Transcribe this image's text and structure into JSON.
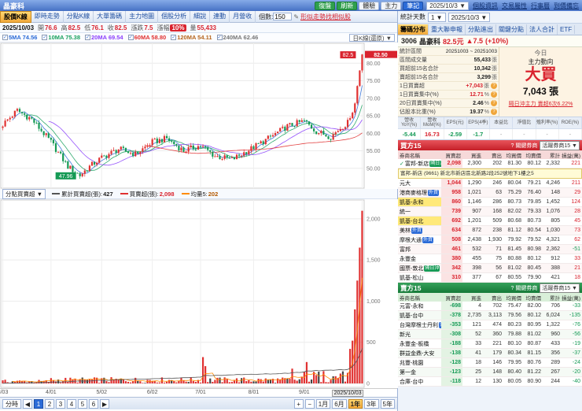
{
  "window": {
    "title": "晶豪科"
  },
  "topbar": {
    "buttons": [
      {
        "id": "replay",
        "label": "復盤"
      },
      {
        "id": "refresh",
        "label": "刷新"
      },
      {
        "id": "experience",
        "label": "體驗"
      },
      {
        "id": "main-force",
        "label": "主力"
      },
      {
        "id": "notes",
        "label": "筆記"
      }
    ],
    "date": "2025/10/3",
    "links": [
      {
        "id": "stock-info",
        "label": "個股資訊"
      },
      {
        "id": "trade-attr",
        "label": "交易屬性"
      },
      {
        "id": "calendar",
        "label": "行事曆"
      },
      {
        "id": "price-alert",
        "label": "到價備忘"
      }
    ]
  },
  "left": {
    "tabs": [
      {
        "id": "price-kline",
        "label": "股價K線",
        "active": true
      },
      {
        "id": "realtime",
        "label": "即時走勢",
        "active": false
      },
      {
        "id": "branch-kline",
        "label": "分點K線",
        "active": false
      },
      {
        "id": "big-order",
        "label": "大單籌碼",
        "active": false
      },
      {
        "id": "force-map",
        "label": "主力地圖",
        "active": false
      },
      {
        "id": "stock-analysis",
        "label": "個股分析",
        "active": false
      },
      {
        "id": "detail",
        "label": "細說",
        "active": false
      },
      {
        "id": "linkage",
        "label": "連動",
        "active": false
      },
      {
        "id": "monthly-revenue",
        "label": "月營收",
        "active": false
      }
    ],
    "count_label": "個數:",
    "count_value": "150",
    "similar_link": "形似走勢找相似股",
    "ohlc": {
      "date": "2025/10/03",
      "open_label": "開",
      "open": "76.6",
      "high_label": "高",
      "high": "82.5",
      "low_label": "低",
      "low": "76.1",
      "close_label": "收",
      "close": "82.5",
      "chg_label": "漲跌",
      "chg": "7.5",
      "pct_label": "漲幅",
      "pct": "10%",
      "vol_label": "量",
      "vol": "55,433"
    },
    "ma": [
      {
        "label": "5MA",
        "value": "74.56",
        "color": "#2b6bd7"
      },
      {
        "label": "10MA",
        "value": "75.38",
        "color": "#19a15f"
      },
      {
        "label": "20MA",
        "value": "69.54",
        "color": "#8a3ffc"
      },
      {
        "label": "60MA",
        "value": "58.80",
        "color": "#e03131"
      },
      {
        "label": "120MA",
        "value": "54.11",
        "color": "#b5651d"
      },
      {
        "label": "240MA",
        "value": "62.46",
        "color": "#777777"
      }
    ],
    "kline_select": "日K線(還原) ▼",
    "sub_select": "分點買賣超 ▼",
    "legend": [
      {
        "swatch": "#555",
        "label": "累計買賣超(張):",
        "value": "427",
        "color": "#222"
      },
      {
        "swatch": "#e03131",
        "label": "買賣超(張):",
        "value": "2,098",
        "color": "#d9232e"
      },
      {
        "swatch": "#ff8c00",
        "label": "均量5:",
        "value": "202",
        "color": "#b35900"
      }
    ],
    "pager": {
      "prefix": "分時",
      "prev": "◀",
      "next": "▶",
      "pages": [
        "1",
        "2",
        "3",
        "4",
        "5",
        "6"
      ],
      "active": "1"
    },
    "zoom_in": "+",
    "zoom_out": "−",
    "periods": [
      "1月",
      "6月",
      "1年",
      "3年",
      "5年"
    ],
    "active_period": "1年"
  },
  "chart_data": {
    "type": "candlestick",
    "title": "晶豪科(3006) 日K線與分點買賣超",
    "n": 150,
    "x_ticks": [
      {
        "i": 0,
        "label": "3/03"
      },
      {
        "i": 20,
        "label": "4/01"
      },
      {
        "i": 41,
        "label": "5/02"
      },
      {
        "i": 62,
        "label": "6/02"
      },
      {
        "i": 82,
        "label": "7/01"
      },
      {
        "i": 104,
        "label": "8/01"
      },
      {
        "i": 125,
        "label": "9/01"
      },
      {
        "i": 149,
        "label": "2025/10/03"
      }
    ],
    "price_ylim": [
      45,
      85
    ],
    "price_ticks": [
      50,
      55,
      60,
      65,
      70,
      75,
      80
    ],
    "price_path": [
      [
        0,
        62.5
      ],
      [
        6,
        66.5
      ],
      [
        12,
        64.0
      ],
      [
        20,
        57.5
      ],
      [
        27,
        50.5
      ],
      [
        32,
        47.96
      ],
      [
        36,
        50.5
      ],
      [
        41,
        53.0
      ],
      [
        48,
        55.5
      ],
      [
        55,
        54.0
      ],
      [
        62,
        57.5
      ],
      [
        68,
        58.5
      ],
      [
        75,
        55.0
      ],
      [
        82,
        56.5
      ],
      [
        88,
        53.5
      ],
      [
        95,
        52.5
      ],
      [
        104,
        56.0
      ],
      [
        110,
        58.5
      ],
      [
        118,
        62.0
      ],
      [
        125,
        63.5
      ],
      [
        130,
        60.5
      ],
      [
        136,
        59.0
      ],
      [
        140,
        61.5
      ],
      [
        143,
        63.0
      ],
      [
        145,
        66.0
      ],
      [
        146,
        68.5
      ],
      [
        147,
        73.5
      ],
      [
        148,
        78.0
      ],
      [
        149,
        82.5
      ]
    ],
    "low_flag": {
      "i": 32,
      "value": "47.96"
    },
    "high_flag": {
      "i": 149,
      "value": "82.5"
    },
    "last_price_axis_flag": "82.50",
    "net_ylim": [
      0,
      2200
    ],
    "net_ticks": [
      0,
      500,
      1000,
      1500,
      2000
    ],
    "net_spikes": {
      "83": 320,
      "84": 210,
      "120": 180,
      "126": 260,
      "133": 150,
      "140": 120,
      "144": 420,
      "145": 520,
      "146": 900,
      "147": 1250,
      "148": 1650,
      "149": 2098
    },
    "ma_windows": [
      5,
      10,
      20,
      60
    ],
    "up_color": "#e03131",
    "down_color": "#159a55"
  },
  "right": {
    "controls": {
      "stat_days_label": "統計天數",
      "stat_days_value": "1 ▼",
      "date_value": "2025/10/3 ▼"
    },
    "tabs": [
      {
        "id": "chip-distribution",
        "label": "籌碼分布",
        "active": true
      },
      {
        "id": "major-holders",
        "label": "重大聯申報",
        "active": false
      },
      {
        "id": "branch-flow",
        "label": "分點進出",
        "active": false
      },
      {
        "id": "key-branch",
        "label": "關鍵分點",
        "active": false
      },
      {
        "id": "institutional",
        "label": "法人合計",
        "active": false
      },
      {
        "id": "etf",
        "label": "ETF",
        "active": false
      }
    ],
    "stock": {
      "code": "3006",
      "name": "晶豪科",
      "price": "82.5元",
      "change": "▲7.5",
      "pct": "(+10%)"
    },
    "stats": {
      "range_label": "統計區間",
      "range": "20251003 ~ 20251003",
      "rows": [
        {
          "label": "區間成交量",
          "value": "55,433",
          "unit": "張",
          "red": false,
          "help": false
        },
        {
          "label": "買超前15名合計",
          "value": "10,342",
          "unit": "張",
          "red": false,
          "help": false
        },
        {
          "label": "賣超前15名合計",
          "value": "3,299",
          "unit": "張",
          "red": false,
          "help": false
        },
        {
          "label": "1日買賣超",
          "value": "+7,043",
          "unit": "張",
          "red": true,
          "help": true
        },
        {
          "label": "1日買賣集中(%)",
          "value": "12.71",
          "unit": "%",
          "red": true,
          "help": true
        },
        {
          "label": "20日買賣集中(%)",
          "value": "2.46",
          "unit": "%",
          "red": false,
          "help": true
        },
        {
          "label": "佔股本比重(%)",
          "value": "19.37",
          "unit": "%",
          "red": false,
          "help": true
        }
      ]
    },
    "force_box": {
      "today": "今日",
      "title": "主力動向",
      "action": "大買",
      "amount": "7,043 張",
      "note": "隔日沖主力 賣超6次6.22%"
    },
    "metrics": {
      "headers": [
        "營收YoY(%)",
        "營收MoM(%)",
        "EPS(元)",
        "EPS(4季)",
        "本益比",
        "淨值比",
        "殖利率(%)",
        "ROE(%)"
      ],
      "values": [
        {
          "v": "-5.44",
          "c": "green"
        },
        {
          "v": "16.73",
          "c": "red"
        },
        {
          "v": "-2.59",
          "c": "green"
        },
        {
          "v": "-1.7",
          "c": "green"
        },
        {
          "v": "-",
          "c": "dim"
        },
        {
          "v": "-",
          "c": "dim"
        },
        {
          "v": "-",
          "c": "dim"
        },
        {
          "v": "-",
          "c": "dim"
        }
      ]
    },
    "buy_table": {
      "title": "買方15",
      "key_label": "? 關鍵券商",
      "filter": "活躍券商15 ▼",
      "columns": [
        "券商名稱",
        "買賣超",
        "買進",
        "賣出",
        "均買價",
        "均賣價",
        "累計",
        "損益(萬)"
      ],
      "tooltip": {
        "name": "富邦-新店",
        "code": "(9661)",
        "address": "新北市新店區北新路2段252號地下1樓之5"
      },
      "tooltip_after_row": 0,
      "rows": [
        {
          "name": "富邦-新店",
          "tag": "隔日沖",
          "tag_color": "green",
          "checked": true,
          "highlight": false,
          "cells": [
            "2,098",
            "2,300",
            "202",
            "81.30",
            "80.12",
            "2,332",
            "221"
          ]
        },
        {
          "name": "元大",
          "tag": "",
          "tag_color": "",
          "checked": false,
          "highlight": false,
          "cells": [
            "1,044",
            "1,290",
            "246",
            "80.04",
            "79.21",
            "4,246",
            "211"
          ]
        },
        {
          "name": "港商麥格理",
          "tag": "外資",
          "tag_color": "blue",
          "checked": false,
          "highlight": false,
          "cells": [
            "958",
            "1,021",
            "63",
            "75.29",
            "76.40",
            "148",
            "29"
          ]
        },
        {
          "name": "凱基-永和",
          "tag": "隔日沖主力",
          "tag_color": "yellow",
          "checked": false,
          "highlight": true,
          "cells": [
            "860",
            "1,146",
            "286",
            "80.73",
            "79.85",
            "1,452",
            "124"
          ]
        },
        {
          "name": "統一",
          "tag": "",
          "tag_color": "",
          "checked": false,
          "highlight": false,
          "cells": [
            "739",
            "907",
            "168",
            "82.02",
            "79.33",
            "1,076",
            "28"
          ]
        },
        {
          "name": "凱基-台北",
          "tag": "隔日沖主力",
          "tag_color": "yellow",
          "checked": false,
          "highlight": true,
          "cells": [
            "692",
            "1,201",
            "509",
            "80.68",
            "80.73",
            "805",
            "45"
          ]
        },
        {
          "name": "美林",
          "tag": "外資",
          "tag_color": "blue",
          "checked": false,
          "highlight": false,
          "cells": [
            "634",
            "872",
            "238",
            "81.12",
            "80.54",
            "1,030",
            "73"
          ]
        },
        {
          "name": "摩根大通",
          "tag": "外資",
          "tag_color": "blue",
          "checked": false,
          "highlight": false,
          "cells": [
            "508",
            "2,438",
            "1,930",
            "79.92",
            "79.52",
            "4,321",
            "62"
          ]
        },
        {
          "name": "富邦",
          "tag": "",
          "tag_color": "",
          "checked": false,
          "highlight": false,
          "cells": [
            "461",
            "532",
            "71",
            "81.45",
            "80.98",
            "2,362",
            "-51"
          ]
        },
        {
          "name": "永豐金",
          "tag": "",
          "tag_color": "",
          "checked": false,
          "highlight": false,
          "cells": [
            "380",
            "455",
            "75",
            "80.88",
            "80.12",
            "912",
            "33"
          ]
        },
        {
          "name": "國票-敦北",
          "tag": "隔日沖",
          "tag_color": "green",
          "checked": false,
          "highlight": false,
          "cells": [
            "342",
            "398",
            "56",
            "81.02",
            "80.45",
            "388",
            "21"
          ]
        },
        {
          "name": "凱基-松山",
          "tag": "",
          "tag_color": "",
          "checked": false,
          "highlight": false,
          "cells": [
            "310",
            "377",
            "67",
            "80.55",
            "79.90",
            "421",
            "18"
          ]
        }
      ]
    },
    "sell_table": {
      "title": "賣方15",
      "key_label": "? 關鍵券商",
      "filter": "活躍券商15 ▼",
      "columns": [
        "券商名稱",
        "買賣超",
        "買進",
        "賣出",
        "均買價",
        "均賣價",
        "累計",
        "損益(萬)"
      ],
      "rows": [
        {
          "name": "元富-永和",
          "tag": "",
          "tag_color": "",
          "checked": false,
          "highlight": false,
          "cells": [
            "-698",
            "4",
            "702",
            "75.47",
            "82.00",
            "706",
            "-33"
          ]
        },
        {
          "name": "凱基-台中",
          "tag": "",
          "tag_color": "",
          "checked": false,
          "highlight": false,
          "cells": [
            "-378",
            "2,735",
            "3,113",
            "79.56",
            "80.12",
            "6,024",
            "-135"
          ]
        },
        {
          "name": "台灣摩根士丹利",
          "tag": "外資",
          "tag_color": "blue",
          "checked": false,
          "highlight": false,
          "cells": [
            "-353",
            "121",
            "474",
            "80.23",
            "80.95",
            "1,322",
            "-76"
          ]
        },
        {
          "name": "新光",
          "tag": "",
          "tag_color": "",
          "checked": false,
          "highlight": false,
          "cells": [
            "-308",
            "52",
            "360",
            "79.88",
            "81.02",
            "960",
            "-56"
          ]
        },
        {
          "name": "永豐金-板橋",
          "tag": "",
          "tag_color": "",
          "checked": false,
          "highlight": false,
          "cells": [
            "-188",
            "33",
            "221",
            "80.10",
            "80.87",
            "433",
            "-19"
          ]
        },
        {
          "name": "群益金鼎-大安",
          "tag": "",
          "tag_color": "",
          "checked": false,
          "highlight": false,
          "cells": [
            "-138",
            "41",
            "179",
            "80.34",
            "81.15",
            "356",
            "-37"
          ]
        },
        {
          "name": "兆豐-桃園",
          "tag": "",
          "tag_color": "",
          "checked": false,
          "highlight": false,
          "cells": [
            "-128",
            "18",
            "146",
            "79.95",
            "80.76",
            "289",
            "-24"
          ]
        },
        {
          "name": "第一金",
          "tag": "",
          "tag_color": "",
          "checked": false,
          "highlight": false,
          "cells": [
            "-123",
            "25",
            "148",
            "80.40",
            "81.22",
            "267",
            "-20"
          ]
        },
        {
          "name": "合庫-台中",
          "tag": "",
          "tag_color": "",
          "checked": false,
          "highlight": false,
          "cells": [
            "-118",
            "12",
            "130",
            "80.05",
            "80.90",
            "244",
            "-40"
          ]
        }
      ]
    }
  }
}
